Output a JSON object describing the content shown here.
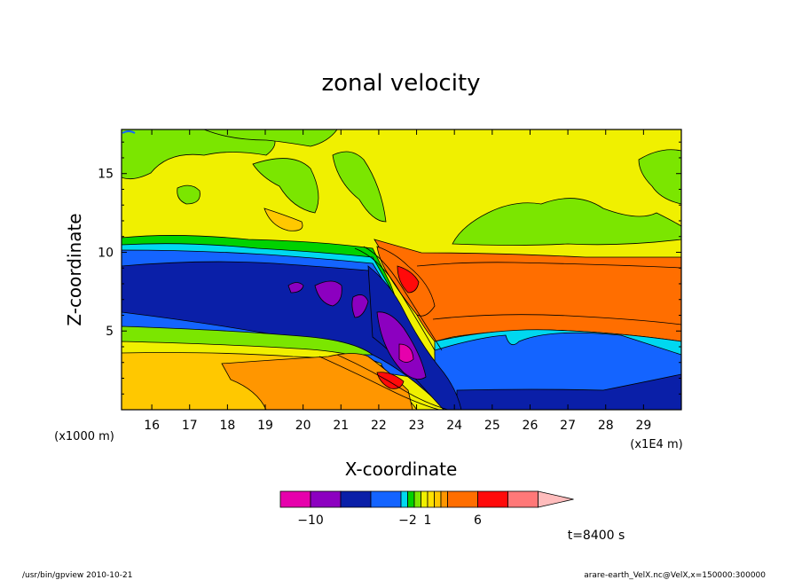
{
  "chart_data": {
    "type": "heatmap",
    "title": "zonal velocity",
    "xlabel": "X-coordinate",
    "ylabel": "Z-coordinate",
    "x_unit_left": "(x1000 m)",
    "x_unit_right": "(x1E4 m)",
    "xlim": [
      15.2,
      30.0
    ],
    "ylim": [
      0,
      17.8
    ],
    "x_ticks": [
      16,
      17,
      18,
      19,
      20,
      21,
      22,
      23,
      24,
      25,
      26,
      27,
      28,
      29
    ],
    "y_ticks": [
      5,
      10,
      15
    ],
    "colorbar": {
      "levels": [
        -14,
        -12,
        -10,
        -8,
        -6,
        -4,
        -2,
        -1,
        0,
        1,
        2,
        3,
        4,
        6,
        8,
        10
      ],
      "colors": [
        "#e600ac",
        "#8c00c0",
        "#0a1fa8",
        "#1464ff",
        "#00d8f0",
        "#00d200",
        "#7be600",
        "#f0f000",
        "#ffe100",
        "#ffc800",
        "#ff9600",
        "#ff6e00",
        "#ff0a0a",
        "#ff7878",
        "#ffbcbc"
      ],
      "labels": [
        {
          "level": -10,
          "text": "−10"
        },
        {
          "level": -2,
          "text": "−2"
        },
        {
          "level": 1,
          "text": "1"
        },
        {
          "level": 6,
          "text": "6"
        }
      ]
    },
    "time_label": "t=8400 s"
  },
  "footer": {
    "left": "/usr/bin/gpview  2010-10-21",
    "right": "arare-earth_VelX.nc@VelX,x=150000:300000"
  }
}
